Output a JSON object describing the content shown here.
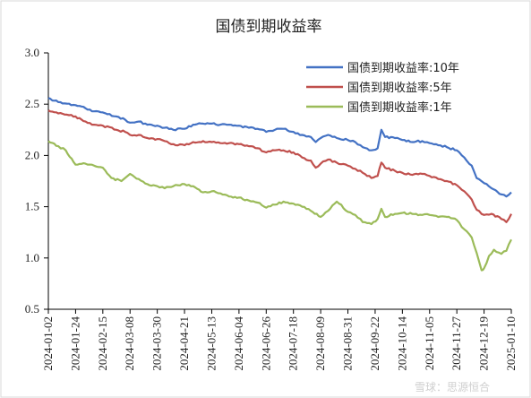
{
  "chart_data": {
    "type": "line",
    "title": "国债到期收益率",
    "ylim": [
      0.5,
      3.0
    ],
    "yticks": [
      "3.0",
      "2.5",
      "2.0",
      "1.5",
      "1.0",
      "0.5"
    ],
    "xlim": [
      "2024-01-02",
      "2025-01-10"
    ],
    "x_tick_labels": [
      "2024-01-02",
      "2024-01-24",
      "2024-02-15",
      "2024-03-08",
      "2024-03-30",
      "2024-04-21",
      "2024-05-13",
      "2024-06-04",
      "2024-06-26",
      "2024-07-18",
      "2024-08-09",
      "2024-08-31",
      "2024-09-22",
      "2024-10-14",
      "2024-11-05",
      "2024-11-27",
      "2024-12-19",
      "2025-01-10"
    ],
    "grid": false,
    "legend_position": "top-right",
    "series": [
      {
        "name": "国债到期收益率:10年",
        "color": "#4472C4",
        "points": [
          [
            "2024-01-02",
            2.56
          ],
          [
            "2024-01-10",
            2.52
          ],
          [
            "2024-01-24",
            2.49
          ],
          [
            "2024-02-01",
            2.46
          ],
          [
            "2024-02-08",
            2.43
          ],
          [
            "2024-02-15",
            2.42
          ],
          [
            "2024-02-26",
            2.38
          ],
          [
            "2024-03-04",
            2.35
          ],
          [
            "2024-03-08",
            2.32
          ],
          [
            "2024-03-15",
            2.33
          ],
          [
            "2024-03-22",
            2.3
          ],
          [
            "2024-03-30",
            2.29
          ],
          [
            "2024-04-05",
            2.27
          ],
          [
            "2024-04-12",
            2.25
          ],
          [
            "2024-04-21",
            2.26
          ],
          [
            "2024-04-28",
            2.3
          ],
          [
            "2024-05-06",
            2.31
          ],
          [
            "2024-05-13",
            2.31
          ],
          [
            "2024-05-20",
            2.3
          ],
          [
            "2024-05-27",
            2.3
          ],
          [
            "2024-06-04",
            2.29
          ],
          [
            "2024-06-12",
            2.27
          ],
          [
            "2024-06-19",
            2.26
          ],
          [
            "2024-06-26",
            2.23
          ],
          [
            "2024-07-03",
            2.25
          ],
          [
            "2024-07-10",
            2.26
          ],
          [
            "2024-07-18",
            2.23
          ],
          [
            "2024-07-25",
            2.2
          ],
          [
            "2024-08-01",
            2.18
          ],
          [
            "2024-08-05",
            2.13
          ],
          [
            "2024-08-09",
            2.17
          ],
          [
            "2024-08-15",
            2.2
          ],
          [
            "2024-08-22",
            2.17
          ],
          [
            "2024-08-31",
            2.15
          ],
          [
            "2024-09-06",
            2.13
          ],
          [
            "2024-09-12",
            2.08
          ],
          [
            "2024-09-19",
            2.05
          ],
          [
            "2024-09-24",
            2.07
          ],
          [
            "2024-09-27",
            2.25
          ],
          [
            "2024-09-30",
            2.18
          ],
          [
            "2024-10-08",
            2.17
          ],
          [
            "2024-10-14",
            2.15
          ],
          [
            "2024-10-22",
            2.13
          ],
          [
            "2024-10-30",
            2.14
          ],
          [
            "2024-11-05",
            2.12
          ],
          [
            "2024-11-12",
            2.1
          ],
          [
            "2024-11-19",
            2.08
          ],
          [
            "2024-11-27",
            2.05
          ],
          [
            "2024-12-03",
            1.98
          ],
          [
            "2024-12-09",
            1.9
          ],
          [
            "2024-12-13",
            1.78
          ],
          [
            "2024-12-19",
            1.73
          ],
          [
            "2024-12-25",
            1.68
          ],
          [
            "2025-01-02",
            1.62
          ],
          [
            "2025-01-06",
            1.6
          ],
          [
            "2025-01-10",
            1.64
          ]
        ]
      },
      {
        "name": "国债到期收益率:5年",
        "color": "#C0504D",
        "points": [
          [
            "2024-01-02",
            2.44
          ],
          [
            "2024-01-10",
            2.41
          ],
          [
            "2024-01-24",
            2.38
          ],
          [
            "2024-02-01",
            2.33
          ],
          [
            "2024-02-08",
            2.3
          ],
          [
            "2024-02-15",
            2.29
          ],
          [
            "2024-02-26",
            2.25
          ],
          [
            "2024-03-04",
            2.23
          ],
          [
            "2024-03-08",
            2.2
          ],
          [
            "2024-03-15",
            2.2
          ],
          [
            "2024-03-22",
            2.17
          ],
          [
            "2024-03-30",
            2.16
          ],
          [
            "2024-04-05",
            2.14
          ],
          [
            "2024-04-12",
            2.11
          ],
          [
            "2024-04-21",
            2.1
          ],
          [
            "2024-04-28",
            2.13
          ],
          [
            "2024-05-06",
            2.14
          ],
          [
            "2024-05-13",
            2.13
          ],
          [
            "2024-05-20",
            2.12
          ],
          [
            "2024-05-27",
            2.12
          ],
          [
            "2024-06-04",
            2.11
          ],
          [
            "2024-06-12",
            2.09
          ],
          [
            "2024-06-19",
            2.07
          ],
          [
            "2024-06-26",
            2.03
          ],
          [
            "2024-07-03",
            2.05
          ],
          [
            "2024-07-10",
            2.05
          ],
          [
            "2024-07-18",
            2.03
          ],
          [
            "2024-07-25",
            1.98
          ],
          [
            "2024-08-01",
            1.95
          ],
          [
            "2024-08-05",
            1.88
          ],
          [
            "2024-08-09",
            1.92
          ],
          [
            "2024-08-15",
            1.96
          ],
          [
            "2024-08-22",
            1.93
          ],
          [
            "2024-08-31",
            1.9
          ],
          [
            "2024-09-06",
            1.87
          ],
          [
            "2024-09-12",
            1.83
          ],
          [
            "2024-09-19",
            1.78
          ],
          [
            "2024-09-24",
            1.8
          ],
          [
            "2024-09-27",
            1.93
          ],
          [
            "2024-09-30",
            1.88
          ],
          [
            "2024-10-08",
            1.85
          ],
          [
            "2024-10-14",
            1.83
          ],
          [
            "2024-10-22",
            1.81
          ],
          [
            "2024-10-30",
            1.82
          ],
          [
            "2024-11-05",
            1.8
          ],
          [
            "2024-11-12",
            1.77
          ],
          [
            "2024-11-19",
            1.75
          ],
          [
            "2024-11-27",
            1.71
          ],
          [
            "2024-12-03",
            1.65
          ],
          [
            "2024-12-09",
            1.57
          ],
          [
            "2024-12-13",
            1.47
          ],
          [
            "2024-12-19",
            1.42
          ],
          [
            "2024-12-25",
            1.43
          ],
          [
            "2025-01-02",
            1.38
          ],
          [
            "2025-01-06",
            1.35
          ],
          [
            "2025-01-10",
            1.43
          ]
        ]
      },
      {
        "name": "国债到期收益率:1年",
        "color": "#9BBB59",
        "points": [
          [
            "2024-01-02",
            2.14
          ],
          [
            "2024-01-10",
            2.09
          ],
          [
            "2024-01-16",
            2.05
          ],
          [
            "2024-01-24",
            1.91
          ],
          [
            "2024-02-01",
            1.92
          ],
          [
            "2024-02-08",
            1.9
          ],
          [
            "2024-02-15",
            1.88
          ],
          [
            "2024-02-22",
            1.78
          ],
          [
            "2024-03-01",
            1.75
          ],
          [
            "2024-03-08",
            1.82
          ],
          [
            "2024-03-15",
            1.77
          ],
          [
            "2024-03-22",
            1.72
          ],
          [
            "2024-03-30",
            1.7
          ],
          [
            "2024-04-05",
            1.68
          ],
          [
            "2024-04-12",
            1.7
          ],
          [
            "2024-04-21",
            1.72
          ],
          [
            "2024-04-28",
            1.7
          ],
          [
            "2024-05-06",
            1.64
          ],
          [
            "2024-05-13",
            1.65
          ],
          [
            "2024-05-20",
            1.63
          ],
          [
            "2024-05-27",
            1.6
          ],
          [
            "2024-06-04",
            1.59
          ],
          [
            "2024-06-12",
            1.56
          ],
          [
            "2024-06-19",
            1.54
          ],
          [
            "2024-06-26",
            1.49
          ],
          [
            "2024-07-03",
            1.52
          ],
          [
            "2024-07-10",
            1.55
          ],
          [
            "2024-07-18",
            1.53
          ],
          [
            "2024-07-25",
            1.5
          ],
          [
            "2024-08-01",
            1.46
          ],
          [
            "2024-08-09",
            1.4
          ],
          [
            "2024-08-15",
            1.46
          ],
          [
            "2024-08-22",
            1.55
          ],
          [
            "2024-08-31",
            1.45
          ],
          [
            "2024-09-06",
            1.42
          ],
          [
            "2024-09-12",
            1.35
          ],
          [
            "2024-09-19",
            1.33
          ],
          [
            "2024-09-24",
            1.38
          ],
          [
            "2024-09-27",
            1.48
          ],
          [
            "2024-09-30",
            1.4
          ],
          [
            "2024-10-08",
            1.43
          ],
          [
            "2024-10-14",
            1.44
          ],
          [
            "2024-10-22",
            1.43
          ],
          [
            "2024-10-30",
            1.42
          ],
          [
            "2024-11-05",
            1.42
          ],
          [
            "2024-11-12",
            1.4
          ],
          [
            "2024-11-19",
            1.4
          ],
          [
            "2024-11-27",
            1.37
          ],
          [
            "2024-12-03",
            1.28
          ],
          [
            "2024-12-09",
            1.2
          ],
          [
            "2024-12-13",
            1.05
          ],
          [
            "2024-12-17",
            0.88
          ],
          [
            "2024-12-19",
            0.9
          ],
          [
            "2024-12-23",
            1.02
          ],
          [
            "2024-12-27",
            1.08
          ],
          [
            "2025-01-02",
            1.04
          ],
          [
            "2025-01-06",
            1.07
          ],
          [
            "2025-01-10",
            1.18
          ]
        ]
      }
    ]
  },
  "watermark": "雪球：思源恒合"
}
